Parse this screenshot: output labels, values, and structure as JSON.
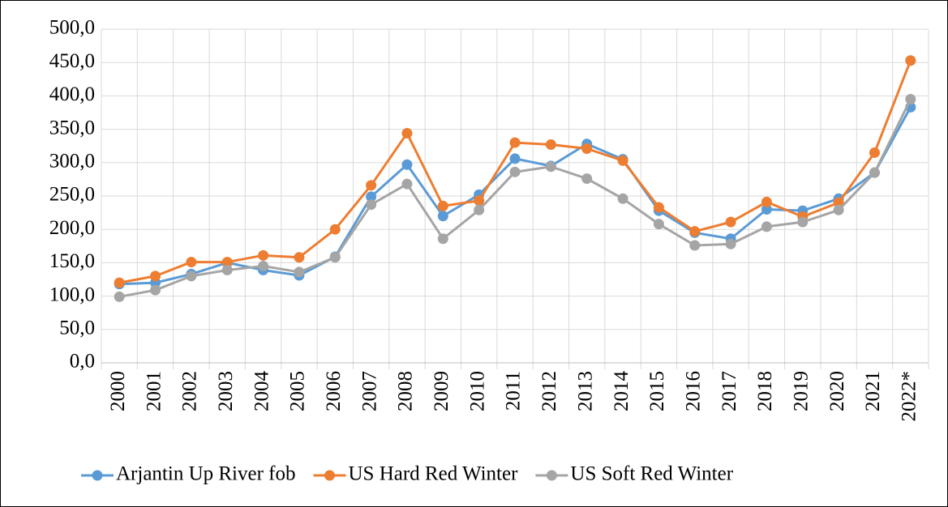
{
  "chart_data": {
    "type": "line",
    "categories": [
      "2000",
      "2001",
      "2002",
      "2003",
      "2004",
      "2005",
      "2006",
      "2007",
      "2008",
      "2009",
      "2010",
      "2011",
      "2012",
      "2013",
      "2014",
      "2015",
      "2016",
      "2017",
      "2018",
      "2019",
      "2020",
      "2021",
      "2022*"
    ],
    "series": [
      {
        "name": "Arjantin Up River fob",
        "color": "#5b9bd5",
        "values": [
          118,
          120,
          133,
          150,
          139,
          131,
          159,
          249,
          297,
          220,
          252,
          306,
          295,
          328,
          305,
          228,
          195,
          186,
          230,
          228,
          246,
          285,
          383
        ]
      },
      {
        "name": "US Hard Red Winter",
        "color": "#ed7d31",
        "values": [
          120,
          130,
          151,
          151,
          161,
          158,
          200,
          266,
          344,
          235,
          243,
          330,
          327,
          321,
          303,
          233,
          197,
          211,
          241,
          219,
          240,
          315,
          453
        ]
      },
      {
        "name": "US Soft Red Winter",
        "color": "#a5a5a5",
        "values": [
          99,
          109,
          130,
          139,
          145,
          136,
          158,
          237,
          268,
          186,
          229,
          286,
          294,
          276,
          246,
          208,
          176,
          178,
          204,
          211,
          229,
          285,
          395
        ]
      }
    ],
    "ylim": [
      0,
      500
    ],
    "yticks": [
      {
        "value": 0,
        "label": "0,0"
      },
      {
        "value": 50,
        "label": "50,0"
      },
      {
        "value": 100,
        "label": "100,0"
      },
      {
        "value": 150,
        "label": "150,0"
      },
      {
        "value": 200,
        "label": "200,0"
      },
      {
        "value": 250,
        "label": "250,0"
      },
      {
        "value": 300,
        "label": "300,0"
      },
      {
        "value": 350,
        "label": "350,0"
      },
      {
        "value": 400,
        "label": "400,0"
      },
      {
        "value": 450,
        "label": "450,0"
      },
      {
        "value": 500,
        "label": "500,0"
      }
    ],
    "grid": true,
    "legend": "bottom"
  }
}
